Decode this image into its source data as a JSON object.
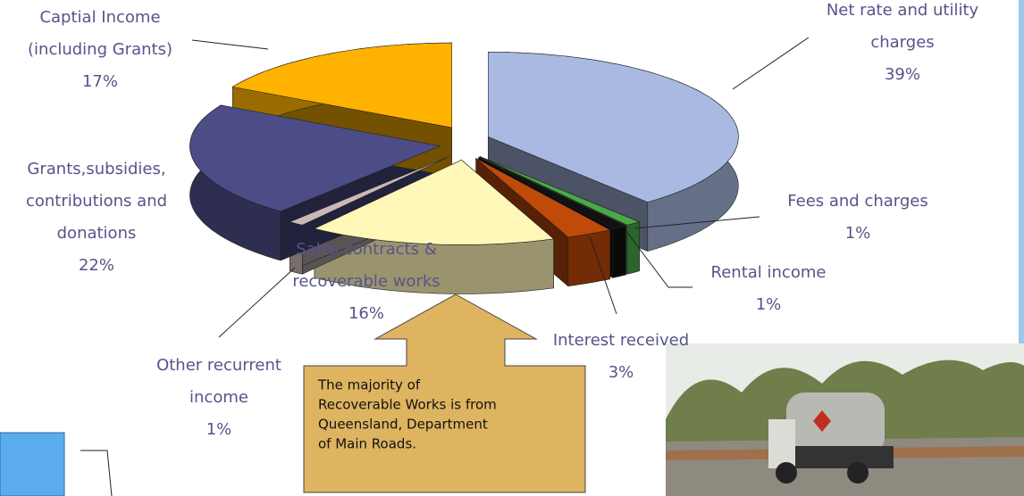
{
  "chart_data": {
    "type": "pie",
    "categories": [
      [
        "Net rate and utility",
        "charges"
      ],
      [
        "Fees and charges"
      ],
      [
        "Rental income"
      ],
      [
        "Interest received"
      ],
      [
        "Sales contracts &",
        "recoverable works"
      ],
      [
        "Other recurrent",
        "income"
      ],
      [
        "Grants,subsidies,",
        "contributions and",
        "donations"
      ],
      [
        "Captial Income",
        "(including Grants)"
      ]
    ],
    "values": [
      39,
      1,
      1,
      3,
      16,
      1,
      22,
      17
    ],
    "value_labels": [
      "39%",
      "1%",
      "1%",
      "3%",
      "16%",
      "1%",
      "22%",
      "17%"
    ],
    "colors": [
      "#a9b9e2",
      "#4aa84a",
      "#111111",
      "#c04a08",
      "#fff7b8",
      "#c9b8b8",
      "#4c4c86",
      "#ffb300"
    ],
    "annotation": [
      "The majority of",
      "Recoverable Works is from",
      "Queensland, Department",
      "of Main Roads."
    ]
  }
}
